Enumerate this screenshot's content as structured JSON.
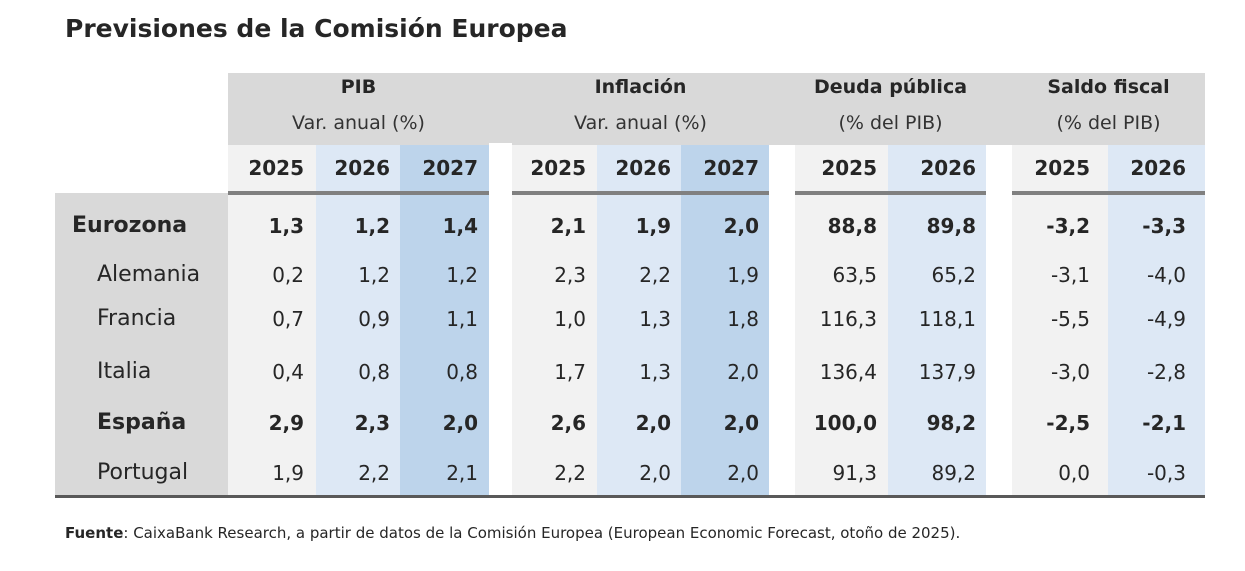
{
  "title": "Previsiones de la Comisión Europea",
  "groups": [
    {
      "title": "PIB",
      "subtitle": "Var. anual (%)",
      "years": [
        "2025",
        "2026",
        "2027"
      ]
    },
    {
      "title": "Inflación",
      "subtitle": "Var. anual (%)",
      "years": [
        "2025",
        "2026",
        "2027"
      ]
    },
    {
      "title": "Deuda pública",
      "subtitle": "(% del PIB)",
      "years": [
        "2025",
        "2026"
      ]
    },
    {
      "title": "Saldo fiscal",
      "subtitle": "(% del PIB)",
      "years": [
        "2025",
        "2026"
      ]
    }
  ],
  "rows": [
    {
      "label": "Eurozona",
      "bold": true,
      "values": [
        "1,3",
        "1,2",
        "1,4",
        "2,1",
        "1,9",
        "2,0",
        "88,8",
        "89,8",
        "-3,2",
        "-3,3"
      ]
    },
    {
      "label": "Alemania",
      "bold": false,
      "values": [
        "0,2",
        "1,2",
        "1,2",
        "2,3",
        "2,2",
        "1,9",
        "63,5",
        "65,2",
        "-3,1",
        "-4,0"
      ]
    },
    {
      "label": "Francia",
      "bold": false,
      "values": [
        "0,7",
        "0,9",
        "1,1",
        "1,0",
        "1,3",
        "1,8",
        "116,3",
        "118,1",
        "-5,5",
        "-4,9"
      ]
    },
    {
      "label": "Italia",
      "bold": false,
      "values": [
        "0,4",
        "0,8",
        "0,8",
        "1,7",
        "1,3",
        "2,0",
        "136,4",
        "137,9",
        "-3,0",
        "-2,8"
      ]
    },
    {
      "label": "España",
      "bold": true,
      "values": [
        "2,9",
        "2,3",
        "2,0",
        "2,6",
        "2,0",
        "2,0",
        "100,0",
        "98,2",
        "-2,5",
        "-2,1"
      ]
    },
    {
      "label": "Portugal",
      "bold": false,
      "values": [
        "1,9",
        "2,2",
        "2,1",
        "2,2",
        "2,0",
        "2,0",
        "91,3",
        "89,2",
        "0,0",
        "-0,3"
      ]
    }
  ],
  "source": {
    "label": "Fuente",
    "text": ": CaixaBank Research, a partir de datos de la Comisión Europea (European Economic Forecast, otoño de 2025)."
  },
  "colors": {
    "header_band": "#d9d9d9",
    "col_2025": "#f2f2f2",
    "col_2026": "#dde8f5",
    "col_2027": "#bdd4eb",
    "rule": "#808080"
  }
}
